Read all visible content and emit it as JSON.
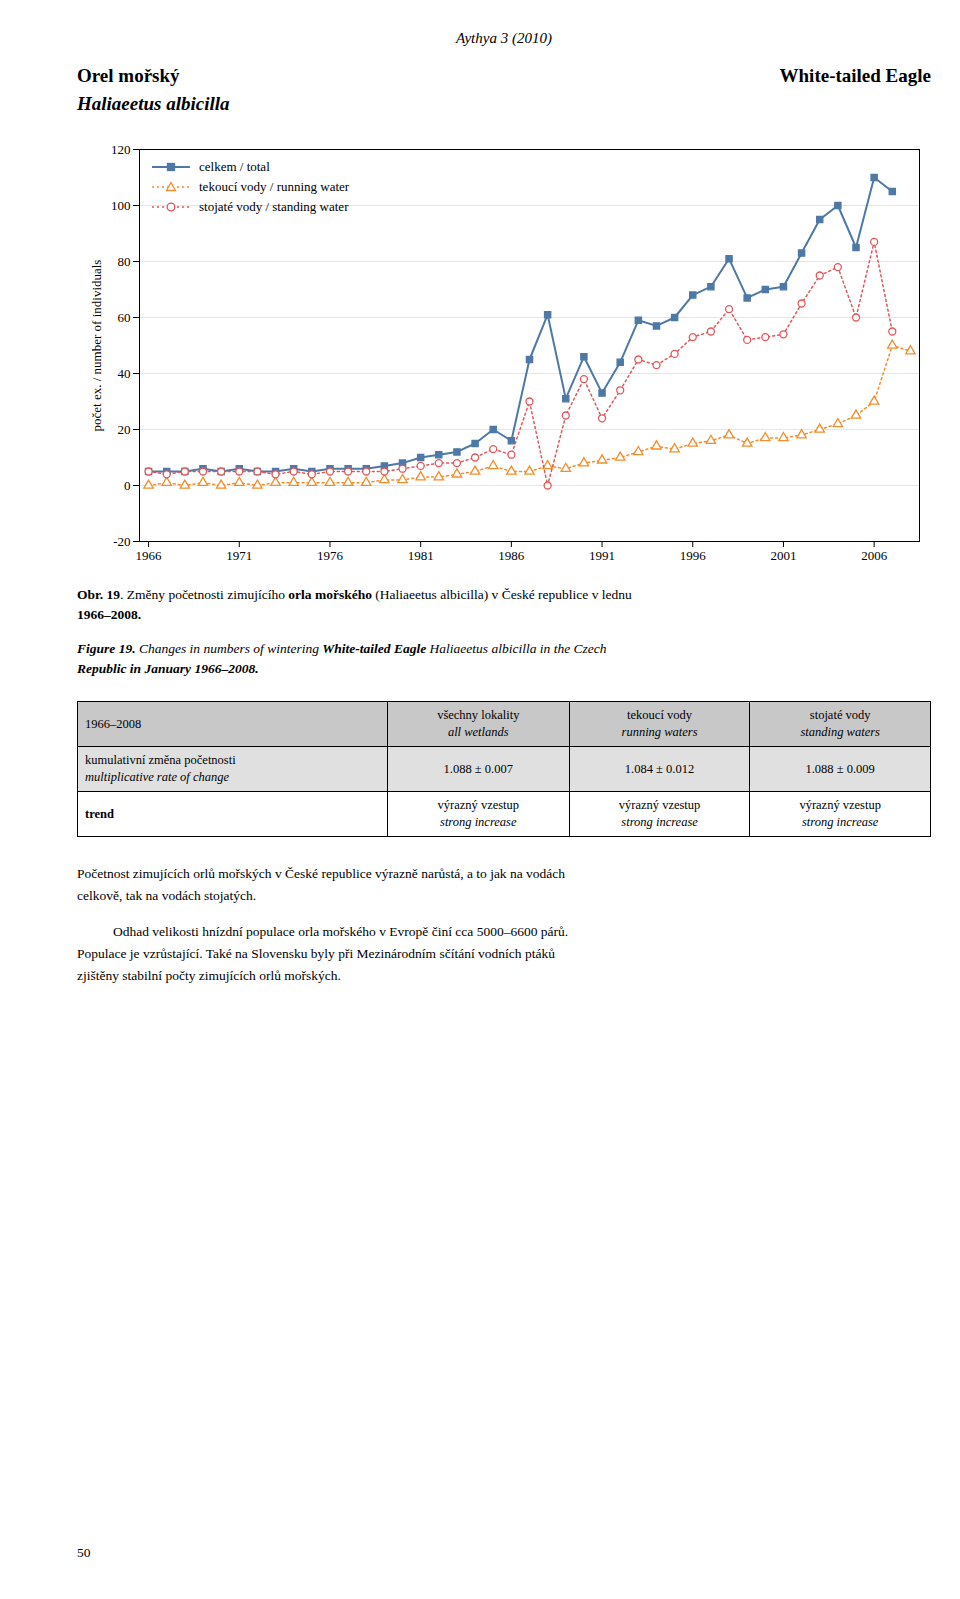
{
  "chart_data": {
    "type": "line",
    "ylabel": "počet ex. / number of individuals",
    "x": [
      1966,
      1967,
      1968,
      1969,
      1970,
      1971,
      1972,
      1973,
      1974,
      1975,
      1976,
      1977,
      1978,
      1979,
      1980,
      1981,
      1982,
      1983,
      1984,
      1985,
      1986,
      1987,
      1988,
      1989,
      1990,
      1991,
      1992,
      1993,
      1994,
      1995,
      1996,
      1997,
      1998,
      1999,
      2000,
      2001,
      2002,
      2003,
      2004,
      2005,
      2006,
      2007,
      2008
    ],
    "series": [
      {
        "name": "celkem / total",
        "marker": "square",
        "line_style": "solid",
        "values": [
          5,
          5,
          5,
          6,
          5,
          6,
          5,
          5,
          6,
          5,
          6,
          6,
          6,
          7,
          8,
          10,
          11,
          12,
          15,
          20,
          16,
          45,
          61,
          31,
          46,
          33,
          44,
          59,
          57,
          60,
          68,
          71,
          81,
          67,
          70,
          71,
          83,
          95,
          100,
          85,
          110,
          105,
          null
        ]
      },
      {
        "name": "tekoucí vody / running water",
        "marker": "triangle",
        "line_style": "dotted",
        "values": [
          0,
          1,
          0,
          1,
          0,
          1,
          0,
          1,
          1,
          1,
          1,
          1,
          1,
          2,
          2,
          3,
          3,
          4,
          5,
          7,
          5,
          5,
          7,
          6,
          8,
          9,
          10,
          12,
          14,
          13,
          15,
          16,
          18,
          15,
          17,
          17,
          18,
          20,
          22,
          25,
          30,
          50,
          48
        ]
      },
      {
        "name": "stojaté vody / standing water",
        "marker": "circle",
        "line_style": "dotted",
        "values": [
          5,
          4,
          5,
          5,
          5,
          5,
          5,
          4,
          5,
          4,
          5,
          5,
          5,
          5,
          6,
          7,
          8,
          8,
          10,
          13,
          11,
          30,
          0,
          25,
          38,
          24,
          34,
          45,
          43,
          47,
          53,
          55,
          63,
          52,
          53,
          54,
          65,
          75,
          78,
          60,
          87,
          55,
          null
        ]
      }
    ],
    "xlim": [
      1965.5,
      2008.5
    ],
    "xticks": [
      1966,
      1971,
      1976,
      1981,
      1986,
      1991,
      1996,
      2001,
      2006
    ],
    "ylim": [
      -20,
      120
    ],
    "yticks": [
      -20,
      0,
      20,
      40,
      60,
      80,
      100,
      120
    ],
    "grid": true,
    "legend": "upper left"
  },
  "page": {
    "header": "Aythya 3 (2010)",
    "title_left": [
      "Orel mořský",
      "Haliaeetus albicilla"
    ],
    "title_right": "White-tailed Eagle",
    "caption_cz": [
      [
        "Obr. 19",
        ". Změny početnosti zimujícího ",
        "orla mořského",
        " (",
        "Haliaeetus albicilla",
        ") v České republice v lednu"
      ],
      [
        "1966–2008."
      ]
    ],
    "caption_en": [
      [
        "Figure 19.",
        " Changes in numbers of wintering ",
        "White-tailed Eagle",
        " Haliaeetus albicilla",
        " in the Czech"
      ],
      [
        "Republic in January 1966–2008."
      ]
    ],
    "table": {
      "header": [
        [
          "1966–2008"
        ],
        [
          "všechny lokality",
          "all wetlands"
        ],
        [
          "tekoucí vody",
          "running waters"
        ],
        [
          "stojaté vody",
          "standing waters"
        ]
      ],
      "rows": [
        {
          "label": [
            "kumulativní změna početnosti",
            "multiplicative rate of change"
          ],
          "values": [
            [
              "1.088 ± 0.007"
            ],
            [
              "1.084 ± 0.012"
            ],
            [
              "1.088 ± 0.009"
            ]
          ]
        },
        {
          "label": [
            "trend"
          ],
          "values": [
            [
              "výrazný vzestup",
              "strong increase"
            ],
            [
              "výrazný vzestup",
              "strong increase"
            ],
            [
              "výrazný vzestup",
              "strong increase"
            ]
          ]
        }
      ]
    },
    "paragraphs": [
      [
        "Početnost zimujících orlů mořských v České republice výrazně narůstá, a to jak na vodách",
        "celkově, tak na vodách stojatých."
      ],
      [
        "Odhad velikosti hnízdní populace orla mořského v Evropě činí cca 5000–6600 párů.",
        "Populace je vzrůstající. Také na Slovensku byly při Mezinárodním sčítání vodních ptáků",
        "zjištěny stabilní počty zimujících orlů mořských."
      ]
    ],
    "page_number": "50"
  }
}
